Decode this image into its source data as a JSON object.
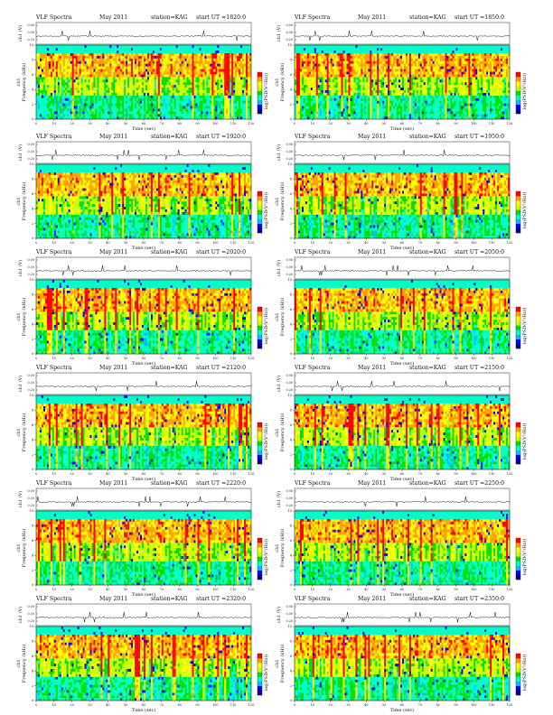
{
  "chart_data": {
    "type": "heatmap",
    "panels": [
      {
        "title": "VLF Spectra",
        "date": "May 2011",
        "station": "station=KAG",
        "start_ut": "start UT =1820:0"
      },
      {
        "title": "VLF Spectra",
        "date": "May 2011",
        "station": "station=KAG",
        "start_ut": "start UT =1850:0"
      },
      {
        "title": "VLF Spectra",
        "date": "May 2011",
        "station": "station=KAG",
        "start_ut": "start UT =1920:0"
      },
      {
        "title": "VLF Spectra",
        "date": "May 2011",
        "station": "station=KAG",
        "start_ut": "start UT =1950:0"
      },
      {
        "title": "VLF Spectra",
        "date": "May 2011",
        "station": "station=KAG",
        "start_ut": "start UT =2020:0"
      },
      {
        "title": "VLF Spectra",
        "date": "May 2011",
        "station": "station=KAG",
        "start_ut": "start UT =2050:0"
      },
      {
        "title": "VLF Spectra",
        "date": "May 2011",
        "station": "station=KAG",
        "start_ut": "start UT =2120:0"
      },
      {
        "title": "VLF Spectra",
        "date": "May 2011",
        "station": "station=KAG",
        "start_ut": "start UT =2150:0"
      },
      {
        "title": "VLF Spectra",
        "date": "May 2011",
        "station": "station=KAG",
        "start_ut": "start UT =2220:0"
      },
      {
        "title": "VLF Spectra",
        "date": "May 2011",
        "station": "station=KAG",
        "start_ut": "start UT =2250:0"
      },
      {
        "title": "VLF Spectra",
        "date": "May 2011",
        "station": "station=KAG",
        "start_ut": "start UT =2320:0"
      },
      {
        "title": "VLF Spectra",
        "date": "May 2011",
        "station": "station=KAG",
        "start_ut": "start UT =2350:0"
      }
    ],
    "xlabel": "Time (sec)",
    "ylabel": "Frequency (kHz)",
    "ylabel_prefix": "ch1",
    "wave_ylabel": "ch1 (V)",
    "colorbar_label": "log(PSD(V²/Hz))",
    "x_range": [
      0,
      120
    ],
    "x_ticks": [
      0,
      10,
      20,
      30,
      40,
      50,
      60,
      70,
      80,
      90,
      100,
      110,
      120
    ],
    "y_range": [
      0,
      10
    ],
    "y_ticks": [
      0,
      2,
      4,
      6,
      8,
      10
    ],
    "wave_ticks": [
      "0.00",
      "0.30",
      "0.20"
    ],
    "colors": [
      "#00008b",
      "#0000ff",
      "#00c0ff",
      "#00ffc8",
      "#00e000",
      "#c8ff00",
      "#ffff00",
      "#ffa000",
      "#ff0000"
    ]
  }
}
